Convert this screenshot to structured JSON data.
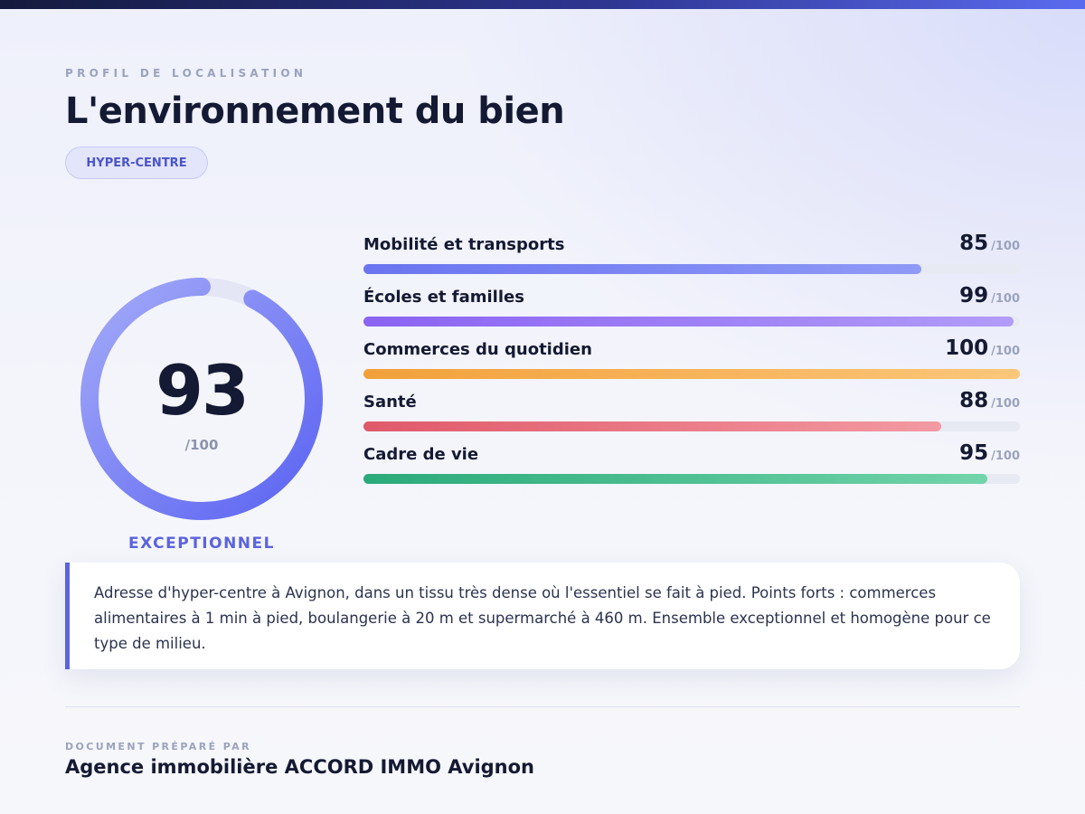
{
  "header": {
    "eyebrow": "PROFIL DE LOCALISATION",
    "title": "L'environnement du bien",
    "badge": "HYPER-CENTRE"
  },
  "overall": {
    "score": "93",
    "max": "/100",
    "score_value": 93,
    "rating": "EXCEPTIONNEL"
  },
  "metrics": [
    {
      "label": "Mobilité et transports",
      "score": "85",
      "value": 85,
      "max": "/100",
      "color_start": "#6a74f0",
      "color_end": "#8f9af6"
    },
    {
      "label": "Écoles et familles",
      "score": "99",
      "value": 99,
      "max": "/100",
      "color_start": "#8a63f2",
      "color_end": "#b29cf8"
    },
    {
      "label": "Commerces du quotidien",
      "score": "100",
      "value": 100,
      "max": "/100",
      "color_start": "#f2a03a",
      "color_end": "#fbc77a"
    },
    {
      "label": "Santé",
      "score": "88",
      "value": 88,
      "max": "/100",
      "color_start": "#e0596a",
      "color_end": "#f39aa2"
    },
    {
      "label": "Cadre de vie",
      "score": "95",
      "value": 95,
      "max": "/100",
      "color_start": "#2aaa7a",
      "color_end": "#72d4ab"
    }
  ],
  "comment": {
    "text": "Adresse d'hyper-centre à Avignon, dans un tissu très dense où l'essentiel se fait à pied. Points forts : commerces alimentaires à 1 min à pied, boulangerie à 20 m et supermarché à 460 m. Ensemble exceptionnel et homogène pour ce type de milieu."
  },
  "footer": {
    "label": "DOCUMENT PRÉPARÉ PAR",
    "agency": "Agence immobilière ACCORD IMMO Avignon"
  },
  "colors": {
    "accent": "#5b63df",
    "gauge_start": "#5b63f2",
    "gauge_end": "#a3aaf8",
    "track": "#e7e9f3"
  }
}
